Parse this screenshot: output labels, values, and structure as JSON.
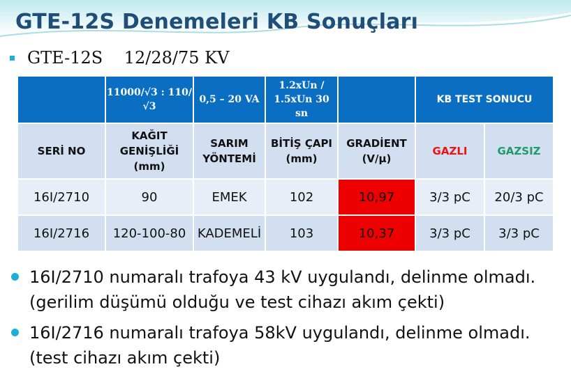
{
  "slide": {
    "title": "GTE-12S Denemeleri KB Sonuçları",
    "subtitle": "GTE-12S    12/28/75 KV"
  },
  "table": {
    "header_row": {
      "col1": "",
      "col2": "11000/√3 : 110/√3",
      "col3": "0,5 – 20 VA",
      "col4": "1.2xUn / 1.5xUn  30 sn",
      "col5": "",
      "kb": "KB TEST SONUCU"
    },
    "sub_row": {
      "seri": "SERİ NO",
      "kagit": "KAĞIT GENİŞLİĞİ (mm)",
      "sarim": "SARIM YÖNTEMİ",
      "bitis": "BİTİŞ ÇAPI (mm)",
      "gradient": "GRADİENT (V/µ)",
      "gazli": "GAZLI",
      "gazsiz": "GAZSIZ"
    },
    "rows": [
      {
        "seri": "16I/2710",
        "kagit": "90",
        "sarim": "EMEK",
        "bitis": "102",
        "gradient": "10,97",
        "gazli": "3/3 pC",
        "gazsiz": "20/3 pC"
      },
      {
        "seri": "16I/2716",
        "kagit": "120-100-80",
        "sarim": "KADEMELİ",
        "bitis": "103",
        "gradient": "10,37",
        "gazli": "3/3 pC",
        "gazsiz": "3/3 pC"
      }
    ]
  },
  "bullets": [
    "16I/2710 numaralı trafoya 43 kV uygulandı, delinme olmadı. (gerilim düşümü olduğu ve test cihazı akım çekti)",
    "16I/2716 numaralı trafoya 58kV uygulandı, delinme olmadı. (test cihazı akım çekti)"
  ],
  "colors": {
    "title": "#1f4e79",
    "header_bg": "#0a6fc2",
    "highlight": "#ee0000",
    "gazli_text": "#ee1111",
    "gazsiz_text": "#1f9a6a",
    "bullet": "#1bb0d8"
  }
}
